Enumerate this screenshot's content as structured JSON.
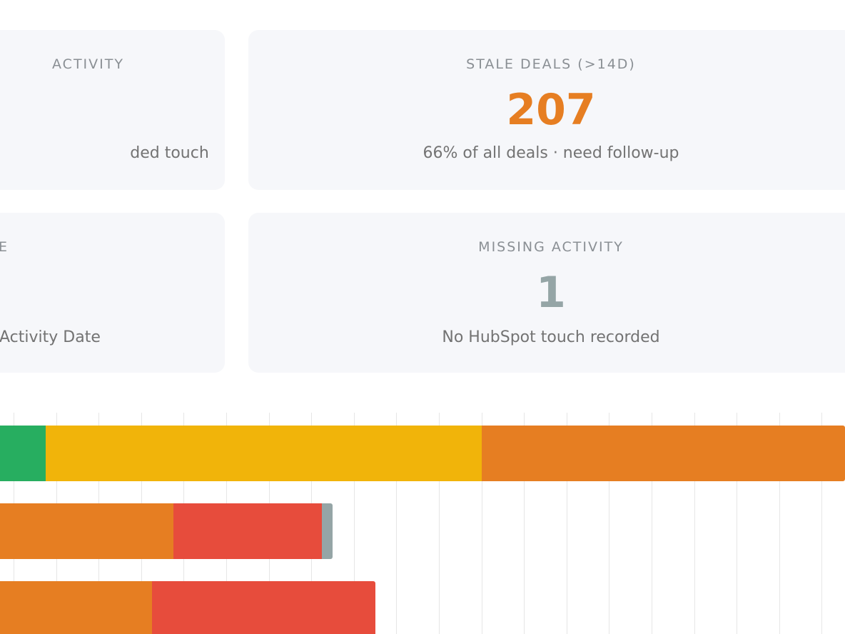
{
  "cards": [
    {
      "label": "ACTIVITY",
      "value": "",
      "subtitle": "ded touch",
      "value_color": "#e67e22"
    },
    {
      "label": "STALE DEALS (>14D)",
      "value": "207",
      "subtitle": "66% of all deals · need follow-up",
      "value_color": "#e67e22"
    },
    {
      "label": "E",
      "value": "",
      "subtitle": "Activity Date",
      "value_color": "#95a5a6"
    },
    {
      "label": "MISSING ACTIVITY",
      "value": "1",
      "subtitle": "No HubSpot touch recorded",
      "value_color": "#95a5a6"
    }
  ],
  "chart_data": {
    "type": "bar",
    "orientation": "horizontal",
    "stacked": true,
    "grid": true,
    "segment_colors": [
      "#27ae60",
      "#f1b40a",
      "#e67e22",
      "#e74c3c",
      "#95a5a6"
    ],
    "rows": [
      [
        {
          "color": "#27ae60",
          "value": 64
        },
        {
          "color": "#f1b40a",
          "value": 611
        },
        {
          "color": "#e67e22",
          "value": 509
        }
      ],
      [
        {
          "color": "#e67e22",
          "value": 243
        },
        {
          "color": "#e74c3c",
          "value": 208
        },
        {
          "color": "#95a5a6",
          "value": 15
        }
      ],
      [
        {
          "color": "#e67e22",
          "value": 213
        },
        {
          "color": "#e74c3c",
          "value": 313
        }
      ]
    ]
  }
}
